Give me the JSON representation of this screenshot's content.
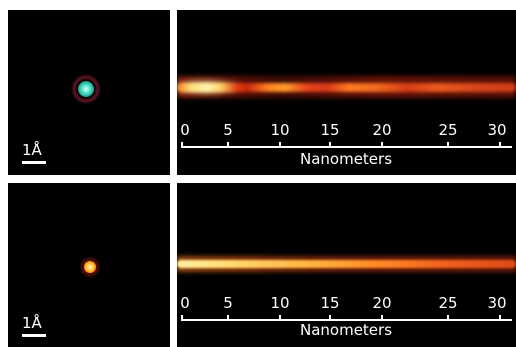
{
  "rows": [
    {
      "scalebar_label": "1Å",
      "spot_color": "#3fd6c1",
      "axis_ticks": [
        "0",
        "5",
        "10",
        "15",
        "20",
        "25",
        "30"
      ],
      "axis_title": "Nanometers"
    },
    {
      "scalebar_label": "1Å",
      "spot_color": "#ffb020",
      "axis_ticks": [
        "0",
        "5",
        "10",
        "15",
        "20",
        "25",
        "30"
      ],
      "axis_title": "Nanometers"
    }
  ],
  "colors": {
    "background": "#000000",
    "beam_core": "#ffe680",
    "beam_mid": "#ff8a1a",
    "beam_edge": "#c41a10"
  }
}
